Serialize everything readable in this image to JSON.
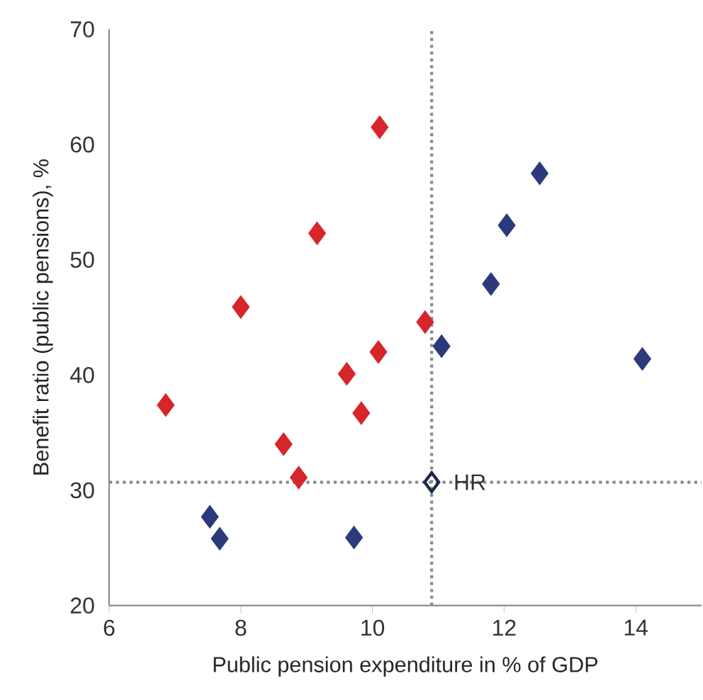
{
  "chart_data": {
    "type": "scatter",
    "xlabel": "Public pension expenditure in % of GDP",
    "ylabel": "Benefit ratio (public pensions), %",
    "xlim": [
      6,
      15
    ],
    "ylim": [
      20,
      70
    ],
    "xticks": [
      6,
      8,
      10,
      12,
      14
    ],
    "yticks": [
      20,
      30,
      40,
      50,
      60,
      70
    ],
    "marker": "diamond",
    "grid": false,
    "series": [
      {
        "color": "#d7262b",
        "x": [
          6.86,
          8.0,
          9.16,
          10.11,
          8.65,
          8.88,
          9.61,
          9.83,
          10.09,
          10.8
        ],
        "values": [
          37.4,
          45.9,
          52.3,
          61.5,
          34.0,
          31.1,
          40.1,
          36.7,
          42.0,
          44.6
        ]
      },
      {
        "color": "#2b3a7a",
        "x": [
          7.53,
          7.68,
          9.72,
          11.05,
          11.8,
          12.04,
          12.54,
          14.1
        ],
        "values": [
          27.7,
          25.8,
          25.9,
          42.5,
          47.9,
          53.0,
          57.5,
          41.4
        ]
      },
      {
        "name": "HR",
        "color": "#1f2a4a",
        "x": [
          10.9
        ],
        "values": [
          30.7
        ]
      }
    ],
    "ref_lines": [
      {
        "axis": "x",
        "value": 10.9,
        "color": "#8c8c8c",
        "line_style": "dotted"
      },
      {
        "axis": "y",
        "value": 30.7,
        "color": "#8c8c8c",
        "line_style": "dotted"
      }
    ]
  }
}
